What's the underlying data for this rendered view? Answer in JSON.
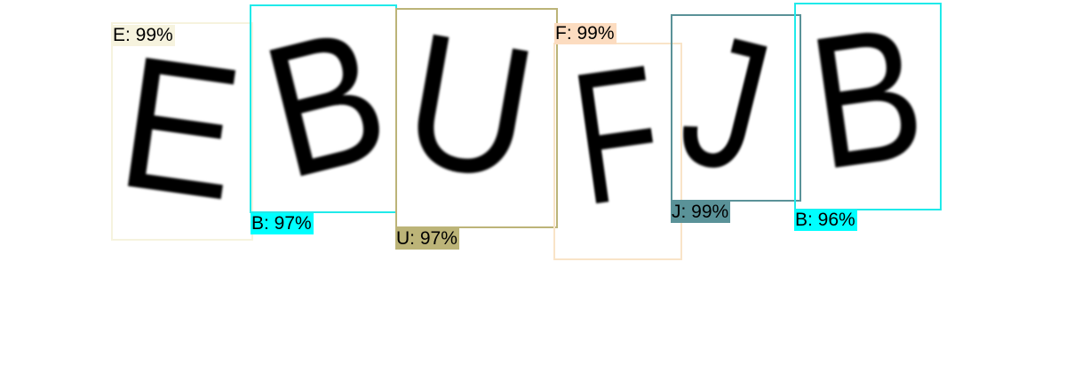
{
  "glyphs": {
    "e": "E",
    "b1": "B",
    "u": "U",
    "f": "F",
    "j": "J",
    "b2": "B"
  },
  "detections": {
    "e": {
      "label": "E: 99%",
      "color": "#f6f3de"
    },
    "b1": {
      "label": "B: 97%",
      "color": "#00ffff"
    },
    "u": {
      "label": "U: 97%",
      "color": "#bcb478"
    },
    "f": {
      "label": "F: 99%",
      "color": "#fcdcc0"
    },
    "j": {
      "label": "J: 99%",
      "color": "#5a9298"
    },
    "b2": {
      "label": "B: 96%",
      "color": "#00ffff"
    }
  }
}
